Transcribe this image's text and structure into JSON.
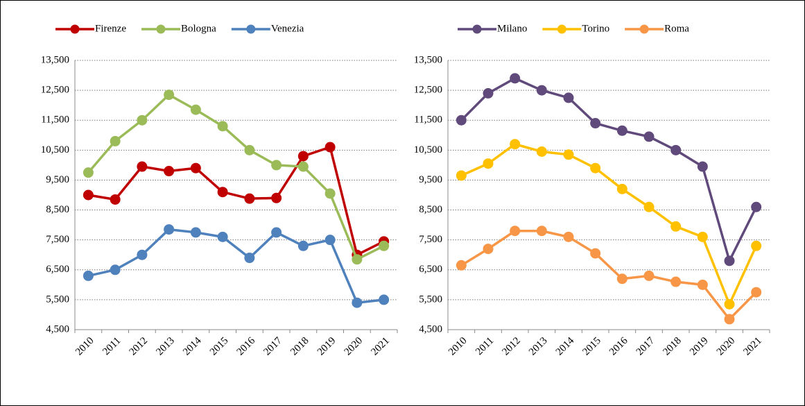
{
  "chart_data": [
    {
      "type": "line",
      "categories": [
        "2010",
        "2011",
        "2012",
        "2013",
        "2014",
        "2015",
        "2016",
        "2017",
        "2018",
        "2019",
        "2020",
        "2021"
      ],
      "series": [
        {
          "name": "Firenze",
          "color": "#c00000",
          "values": [
            9000,
            8850,
            9950,
            9800,
            9900,
            9100,
            8880,
            8900,
            10300,
            10600,
            7000,
            7450
          ]
        },
        {
          "name": "Bologna",
          "color": "#9bbb59",
          "values": [
            9750,
            10800,
            11500,
            12350,
            11850,
            11300,
            10500,
            10000,
            9950,
            9050,
            6850,
            7300
          ]
        },
        {
          "name": "Venezia",
          "color": "#4f81bd",
          "values": [
            6300,
            6500,
            7000,
            7850,
            7750,
            7600,
            6900,
            7750,
            7300,
            7500,
            5400,
            5500
          ]
        }
      ],
      "ylim": [
        4500,
        13500
      ],
      "yticks": [
        {
          "value": 4500,
          "label": "4,500"
        },
        {
          "value": 5500,
          "label": "5,500"
        },
        {
          "value": 6500,
          "label": "6,500"
        },
        {
          "value": 7500,
          "label": "7,500"
        },
        {
          "value": 8500,
          "label": "8,500"
        },
        {
          "value": 9500,
          "label": "9,500"
        },
        {
          "value": 10500,
          "label": "10,500"
        },
        {
          "value": 11500,
          "label": "11,500"
        },
        {
          "value": 12500,
          "label": "12,500"
        },
        {
          "value": 13500,
          "label": "13,500"
        }
      ],
      "grid": true,
      "legend": "top"
    },
    {
      "type": "line",
      "categories": [
        "2010",
        "2011",
        "2012",
        "2013",
        "2014",
        "2015",
        "2016",
        "2017",
        "2018",
        "2019",
        "2020",
        "2021"
      ],
      "series": [
        {
          "name": "Milano",
          "color": "#604a7b",
          "values": [
            11500,
            12400,
            12900,
            12500,
            12250,
            11400,
            11150,
            10950,
            10500,
            9950,
            6800,
            8600
          ]
        },
        {
          "name": "Torino",
          "color": "#ffc000",
          "values": [
            9650,
            10050,
            10700,
            10450,
            10350,
            9900,
            9200,
            8600,
            7950,
            7600,
            5350,
            7300
          ]
        },
        {
          "name": "Roma",
          "color": "#f79646",
          "values": [
            6650,
            7200,
            7800,
            7800,
            7600,
            7050,
            6200,
            6300,
            6100,
            6000,
            4850,
            5750
          ]
        }
      ],
      "ylim": [
        4500,
        13500
      ],
      "yticks": [
        {
          "value": 4500,
          "label": "4,500"
        },
        {
          "value": 5500,
          "label": "5,500"
        },
        {
          "value": 6500,
          "label": "6,500"
        },
        {
          "value": 7500,
          "label": "7,500"
        },
        {
          "value": 8500,
          "label": "8,500"
        },
        {
          "value": 9500,
          "label": "9,500"
        },
        {
          "value": 10500,
          "label": "10,500"
        },
        {
          "value": 11500,
          "label": "11,500"
        },
        {
          "value": 12500,
          "label": "12,500"
        },
        {
          "value": 13500,
          "label": "13,500"
        }
      ],
      "grid": true,
      "legend": "top"
    }
  ]
}
